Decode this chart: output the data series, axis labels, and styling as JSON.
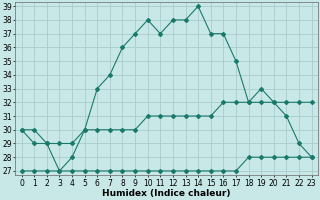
{
  "xlabel": "Humidex (Indice chaleur)",
  "x": [
    0,
    1,
    2,
    3,
    4,
    5,
    6,
    7,
    8,
    9,
    10,
    11,
    12,
    13,
    14,
    15,
    16,
    17,
    18,
    19,
    20,
    21,
    22,
    23
  ],
  "line1": [
    30,
    30,
    29,
    27,
    28,
    30,
    33,
    34,
    36,
    37,
    38,
    37,
    38,
    38,
    39,
    37,
    37,
    35,
    32,
    33,
    32,
    31,
    29,
    28
  ],
  "line2": [
    30,
    29,
    29,
    29,
    29,
    30,
    30,
    30,
    30,
    30,
    31,
    31,
    31,
    31,
    31,
    31,
    32,
    32,
    32,
    32,
    32,
    32,
    32,
    32
  ],
  "line3": [
    27,
    27,
    27,
    27,
    27,
    27,
    27,
    27,
    27,
    27,
    27,
    27,
    27,
    27,
    27,
    27,
    27,
    27,
    28,
    28,
    28,
    28,
    28,
    28
  ],
  "line_color": "#1a7a6a",
  "bg_color": "#c8e8e8",
  "grid_color": "#aacccc",
  "ylim": [
    27,
    39
  ],
  "yticks": [
    27,
    28,
    29,
    30,
    31,
    32,
    33,
    34,
    35,
    36,
    37,
    38,
    39
  ],
  "xticks": [
    0,
    1,
    2,
    3,
    4,
    5,
    6,
    7,
    8,
    9,
    10,
    11,
    12,
    13,
    14,
    15,
    16,
    17,
    18,
    19,
    20,
    21,
    22,
    23
  ],
  "tick_fontsize": 5.5,
  "xlabel_fontsize": 6.5
}
